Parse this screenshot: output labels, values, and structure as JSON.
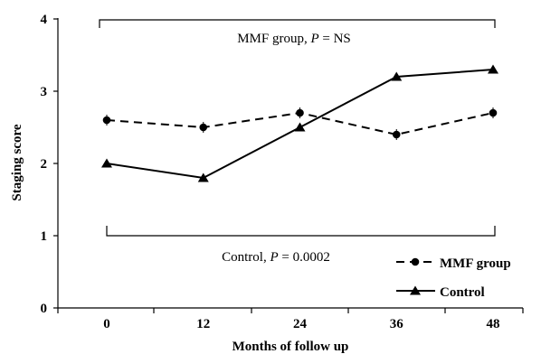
{
  "chart_data": {
    "type": "line",
    "xlabel": "Months of follow up",
    "ylabel": "Staging score",
    "x": [
      0,
      12,
      24,
      36,
      48
    ],
    "x_tick_labels": [
      "0",
      "12",
      "24",
      "36",
      "48"
    ],
    "y_tick_labels": [
      "0",
      "1",
      "2",
      "3",
      "4"
    ],
    "ylim": [
      0,
      4
    ],
    "grid": false,
    "legend_position": "bottom-right",
    "series": [
      {
        "name": "MMF group",
        "values": [
          2.6,
          2.5,
          2.7,
          2.4,
          2.7
        ],
        "line_style": "dashed",
        "marker": "circle",
        "color": "#000000"
      },
      {
        "name": "Control",
        "values": [
          2.0,
          1.8,
          2.5,
          3.2,
          3.3
        ],
        "line_style": "solid",
        "marker": "triangle",
        "color": "#000000"
      }
    ],
    "annotations": [
      {
        "label_prefix": "MMF group, ",
        "p_symbol": "P",
        "p_text": " = NS"
      },
      {
        "label_prefix": "Control, ",
        "p_symbol": "P",
        "p_text": " = 0.0002"
      }
    ]
  }
}
